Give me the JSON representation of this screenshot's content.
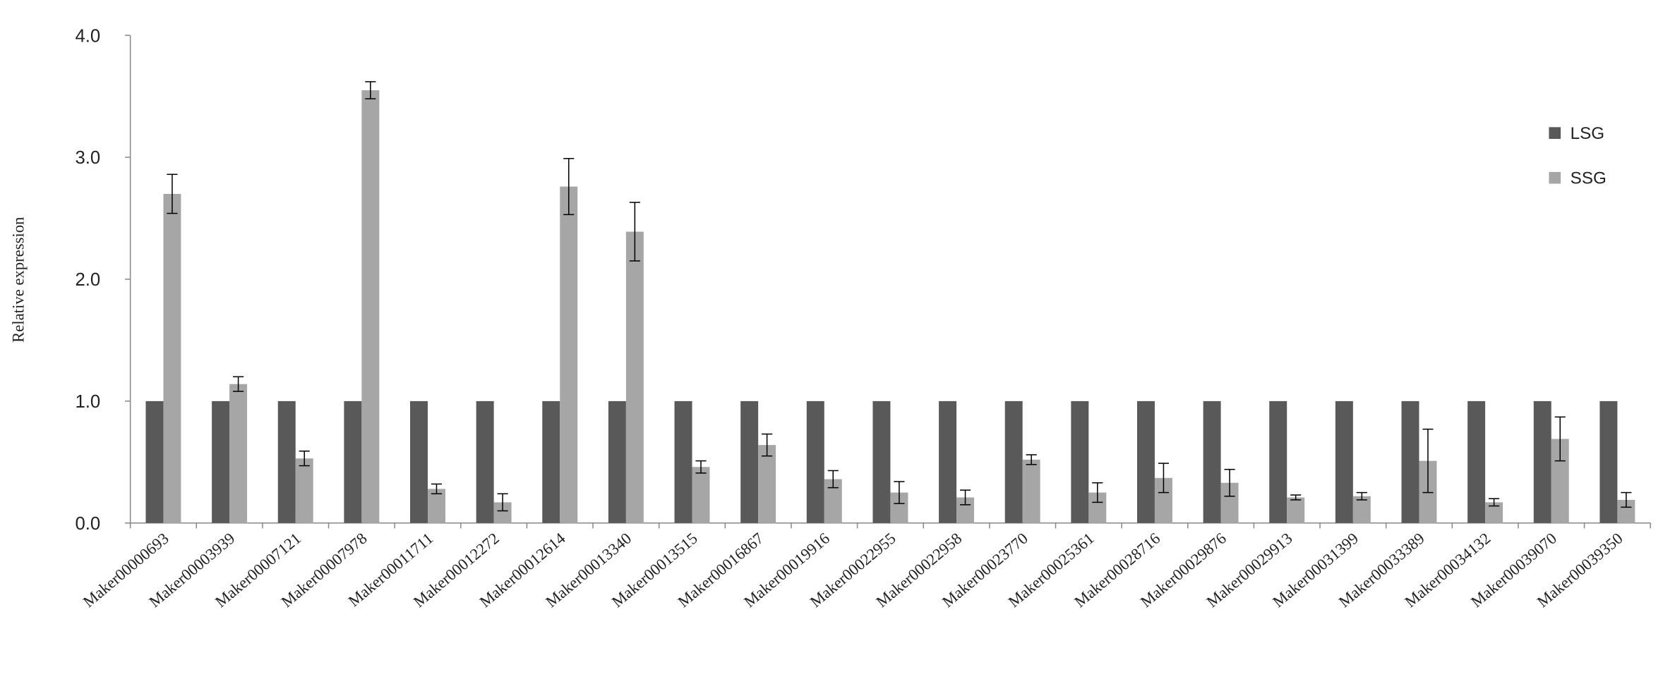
{
  "chart_data": {
    "type": "bar",
    "y_label": "Relative expression",
    "categories": [
      "Maker00000693",
      "Maker00003939",
      "Maker00007121",
      "Maker00007978",
      "Maker00011711",
      "Maker00012272",
      "Maker00012614",
      "Maker00013340",
      "Maker00013515",
      "Maker00016867",
      "Maker00019916",
      "Maker00022955",
      "Maker00022958",
      "Maker00023770",
      "Maker00025361",
      "Maker00028716",
      "Maker00029876",
      "Maker00029913",
      "Maker00031399",
      "Maker00033389",
      "Maker00034132",
      "Maker00039070",
      "Maker00039350"
    ],
    "series": [
      {
        "name": "LSG",
        "color": "#595959",
        "values": [
          1,
          1,
          1,
          1,
          1,
          1,
          1,
          1,
          1,
          1,
          1,
          1,
          1,
          1,
          1,
          1,
          1,
          1,
          1,
          1,
          1,
          1,
          1
        ]
      },
      {
        "name": "SSG",
        "color": "#a6a6a6",
        "values": [
          2.7,
          1.14,
          0.53,
          3.55,
          0.28,
          0.17,
          2.76,
          2.39,
          0.46,
          0.64,
          0.36,
          0.25,
          0.21,
          0.52,
          0.25,
          0.37,
          0.33,
          0.21,
          0.22,
          0.51,
          0.17,
          0.69,
          0.19
        ],
        "errors": [
          0.16,
          0.06,
          0.06,
          0.07,
          0.04,
          0.07,
          0.23,
          0.24,
          0.05,
          0.09,
          0.07,
          0.09,
          0.06,
          0.04,
          0.08,
          0.12,
          0.11,
          0.02,
          0.03,
          0.26,
          0.03,
          0.18,
          0.06
        ]
      }
    ],
    "ylim": [
      0,
      4
    ],
    "yticks": [
      {
        "value": 0,
        "label": "0.0"
      },
      {
        "value": 1,
        "label": "1.0"
      },
      {
        "value": 2,
        "label": "2.0"
      },
      {
        "value": 3,
        "label": "3.0"
      },
      {
        "value": 4,
        "label": "4.0"
      }
    ],
    "grid": false,
    "legend": "right"
  }
}
